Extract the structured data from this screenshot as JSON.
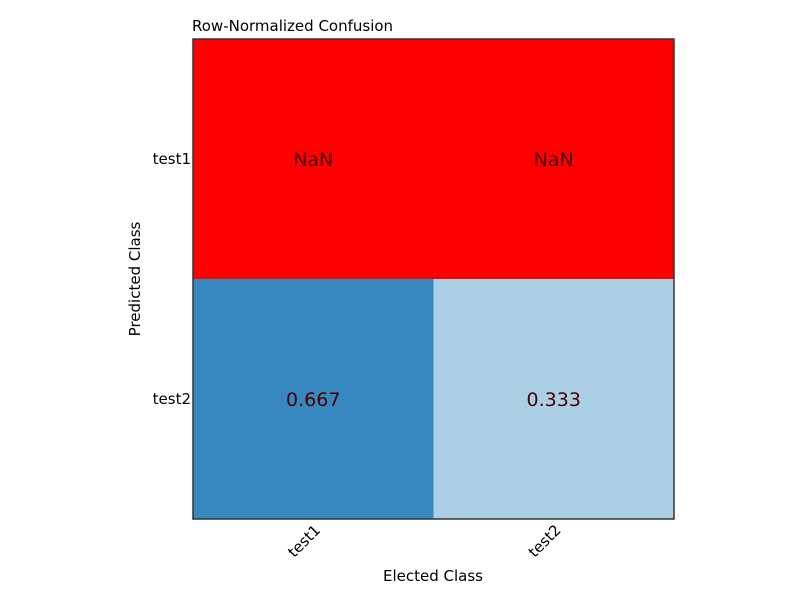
{
  "chart_data": {
    "type": "heatmap",
    "title": "Row-Normalized Confusion",
    "xlabel": "Elected Class",
    "ylabel": "Predicted Class",
    "x_categories": [
      "test1",
      "test2"
    ],
    "y_categories": [
      "test1",
      "test2"
    ],
    "values": [
      [
        null,
        null
      ],
      [
        0.667,
        0.333
      ]
    ],
    "cell_labels": [
      [
        "NaN",
        "NaN"
      ],
      [
        "0.667",
        "0.333"
      ]
    ],
    "colormap": "Blues",
    "nan_color": "#ff0000",
    "cell_colors": [
      [
        "#ff0000",
        "#ff0000"
      ],
      [
        "#3787c0",
        "#abd0e6"
      ]
    ],
    "label_color": "#4b0000",
    "grid": false
  }
}
